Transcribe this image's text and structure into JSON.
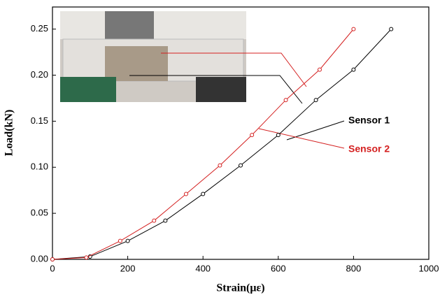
{
  "chart_data": {
    "type": "line",
    "x_label": "Strain(με)",
    "y_label": "Load(kN)",
    "xlim": [
      0,
      1000
    ],
    "xticks": [
      0,
      200,
      400,
      600,
      800,
      1000
    ],
    "ylim": [
      0,
      0.274
    ],
    "yticks": [
      {
        "value": 0,
        "label": "0.00"
      },
      {
        "value": 0.05,
        "label": "0.05"
      },
      {
        "value": 0.1,
        "label": "0.10"
      },
      {
        "value": 0.15,
        "label": "0.15"
      },
      {
        "value": 0.2,
        "label": "0.20"
      },
      {
        "value": 0.25,
        "label": "0.25"
      }
    ],
    "series": [
      {
        "name": "Sensor 1",
        "color": "#000000",
        "x": [
          0,
          100,
          200,
          300,
          400,
          500,
          600,
          700,
          800,
          900
        ],
        "values": [
          0,
          0.003,
          0.02,
          0.042,
          0.071,
          0.102,
          0.135,
          0.173,
          0.206,
          0.25
        ]
      },
      {
        "name": "Sensor 2",
        "color": "#d42020",
        "x": [
          0,
          90,
          180,
          270,
          355,
          445,
          530,
          620,
          710,
          800
        ],
        "values": [
          0,
          0.002,
          0.02,
          0.042,
          0.071,
          0.102,
          0.135,
          0.173,
          0.206,
          0.25
        ]
      }
    ]
  }
}
